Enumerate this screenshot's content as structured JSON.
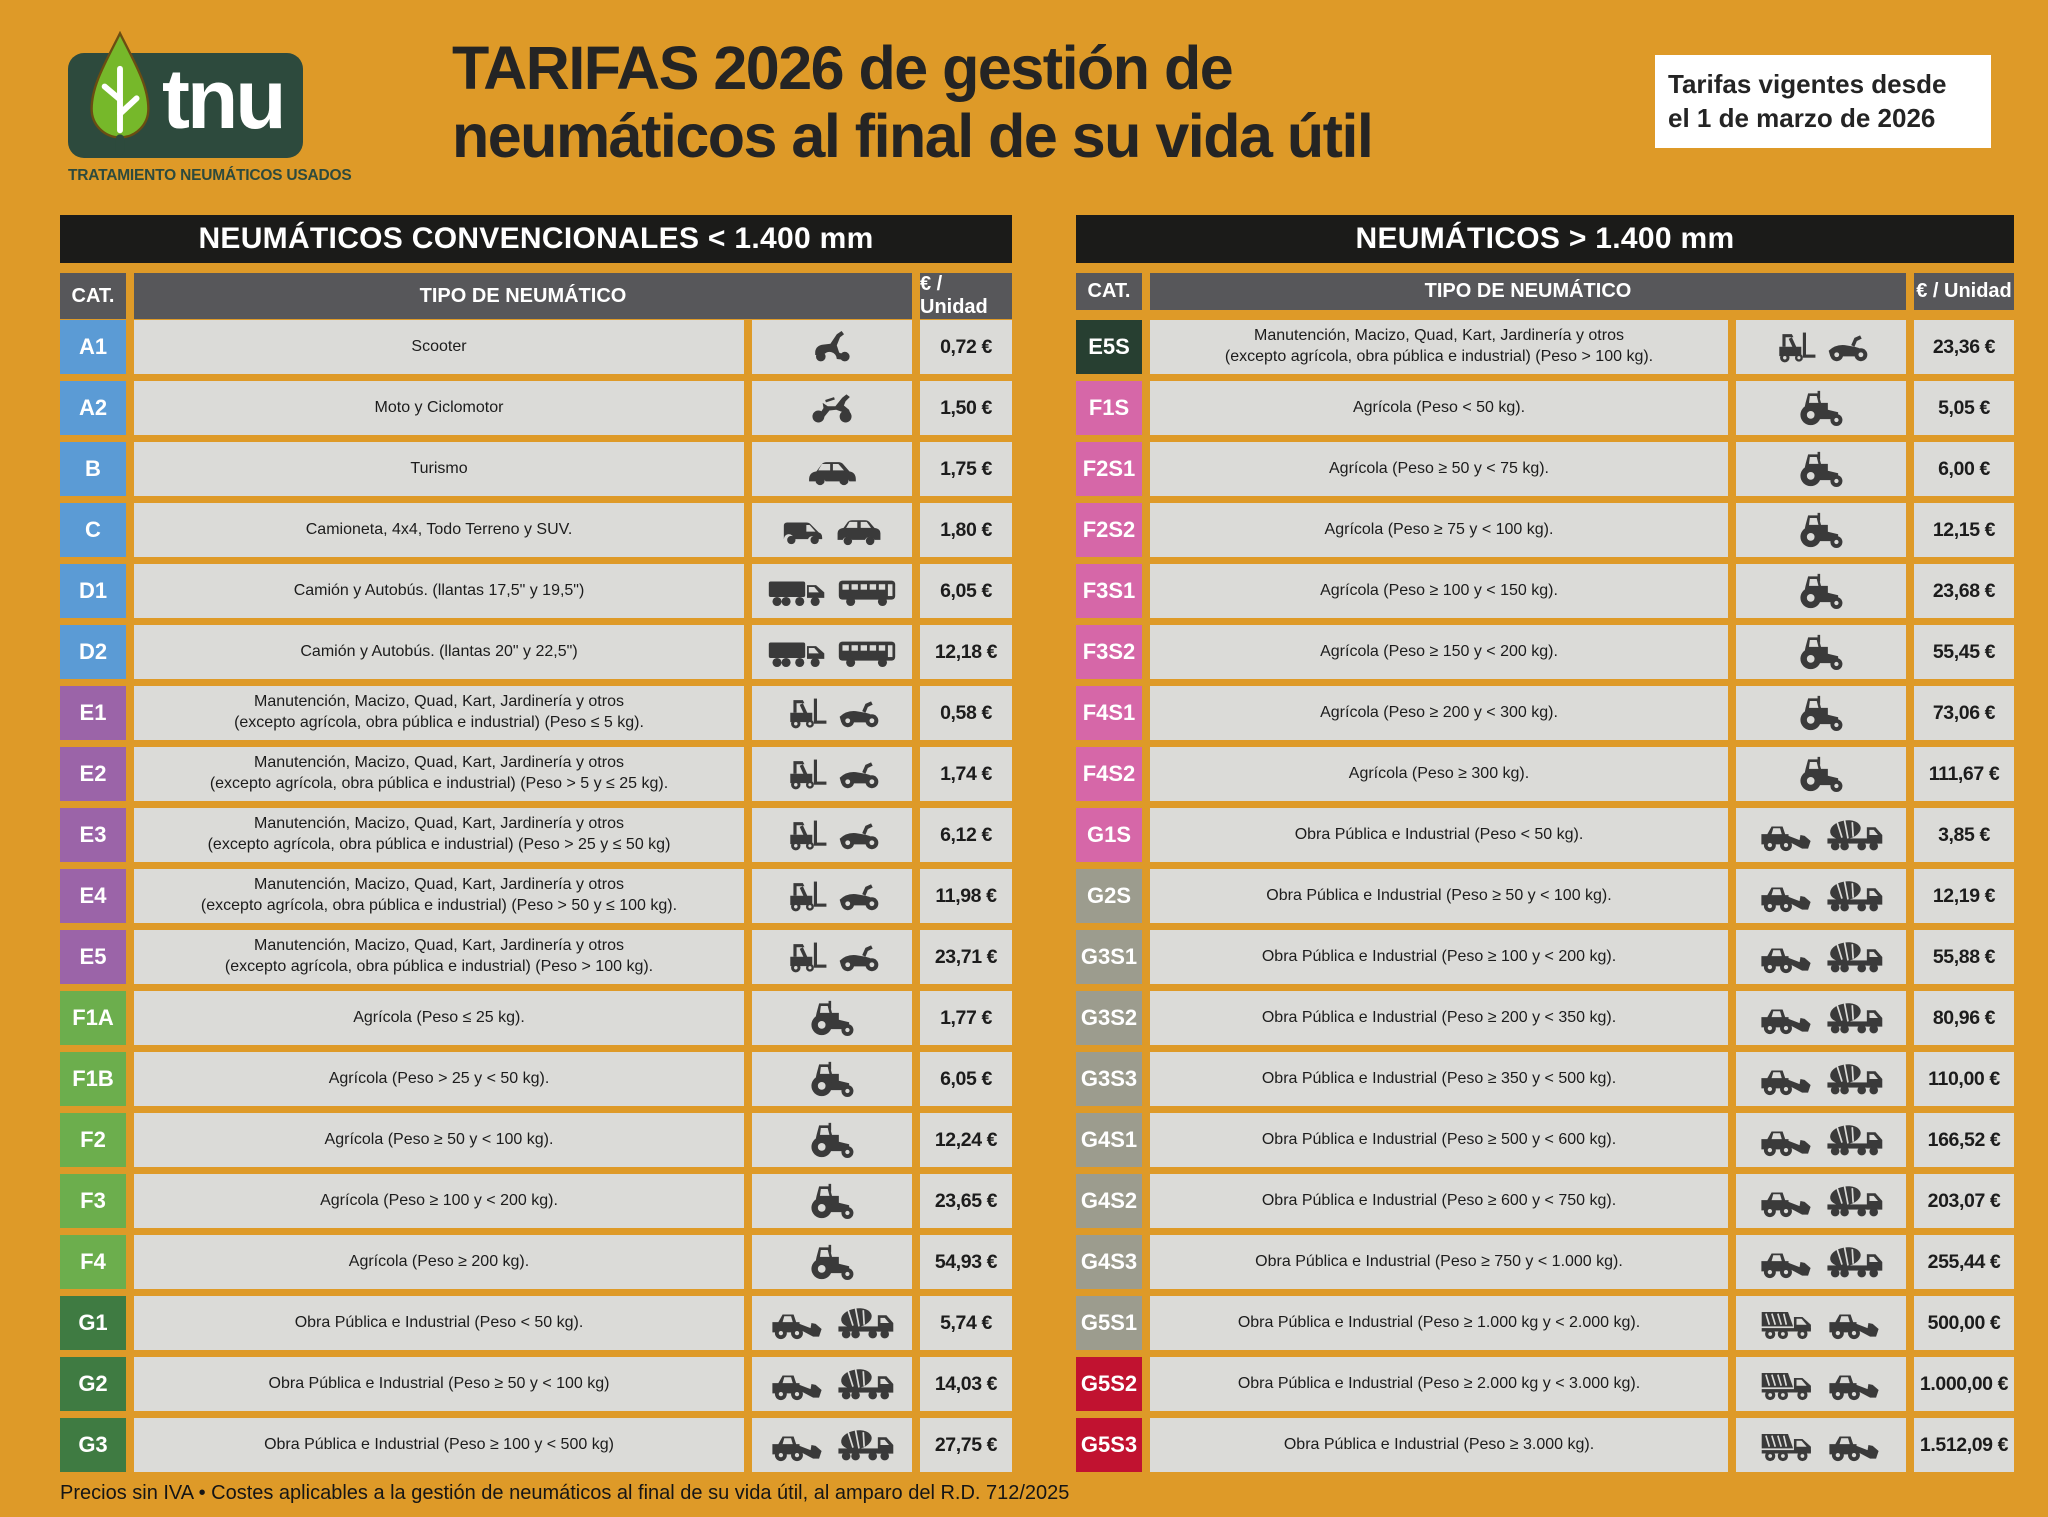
{
  "header": {
    "logo_text": "tnu",
    "logo_subtitle": "TRATAMIENTO NEUMÁTICOS USADOS",
    "title_line1": "TARIFAS 2026 de gestión de",
    "title_line2": "neumáticos al final de su vida útil",
    "validity_line1": "Tarifas vigentes desde",
    "validity_line2": "el 1 de marzo de 2026"
  },
  "columns": {
    "cat": "CAT.",
    "type": "TIPO DE NEUMÁTICO",
    "price": "€ / Unidad"
  },
  "colors": {
    "background": "#DE9A28",
    "table_title_bg": "#1B1B19",
    "column_header_bg": "#57575A",
    "cell_bg": "#DBDBD8",
    "logo_green": "#2D4A3D",
    "leaf_green": "#76B82A",
    "icon_color": "#3A3A3A"
  },
  "badge_colors": {
    "blue": "#5B9BD5",
    "purple": "#9B64A8",
    "green": "#6CAE4D",
    "darkgreen": "#3F7B42",
    "forest": "#273F31",
    "pink": "#D667A8",
    "gray": "#9C9C8E",
    "red": "#C11230"
  },
  "tables": [
    {
      "title": "NEUMÁTICOS CONVENCIONALES < 1.400 mm",
      "rows": [
        {
          "cat": "A1",
          "color": "blue",
          "desc": "Scooter",
          "icons": [
            "scooter"
          ],
          "price": "0,72 €"
        },
        {
          "cat": "A2",
          "color": "blue",
          "desc": "Moto y Ciclomotor",
          "icons": [
            "moto"
          ],
          "price": "1,50 €"
        },
        {
          "cat": "B",
          "color": "blue",
          "desc": "Turismo",
          "icons": [
            "car"
          ],
          "price": "1,75 €"
        },
        {
          "cat": "C",
          "color": "blue",
          "desc": "Camioneta, 4x4, Todo Terreno y SUV.",
          "icons": [
            "van",
            "suv"
          ],
          "price": "1,80 €"
        },
        {
          "cat": "D1",
          "color": "blue",
          "desc": "Camión y Autobús. (llantas 17,5\" y 19,5\")",
          "icons": [
            "truck",
            "bus"
          ],
          "price": "6,05 €"
        },
        {
          "cat": "D2",
          "color": "blue",
          "desc": "Camión y Autobús. (llantas 20\" y 22,5\")",
          "icons": [
            "truck",
            "bus"
          ],
          "price": "12,18 €"
        },
        {
          "cat": "E1",
          "color": "purple",
          "desc": "Manutención, Macizo, Quad, Kart, Jardinería y otros\n(excepto agrícola, obra pública e industrial)  (Peso ≤ 5 kg).",
          "icons": [
            "forklift",
            "quad"
          ],
          "price": "0,58 €"
        },
        {
          "cat": "E2",
          "color": "purple",
          "desc": "Manutención, Macizo, Quad, Kart, Jardinería y otros\n(excepto agrícola, obra pública e industrial) (Peso > 5 y ≤ 25 kg).",
          "icons": [
            "forklift",
            "quad"
          ],
          "price": "1,74 €"
        },
        {
          "cat": "E3",
          "color": "purple",
          "desc": "Manutención, Macizo, Quad, Kart, Jardinería y otros\n(excepto agrícola, obra pública e industrial) (Peso > 25 y ≤ 50 kg)",
          "icons": [
            "forklift",
            "quad"
          ],
          "price": "6,12 €"
        },
        {
          "cat": "E4",
          "color": "purple",
          "desc": "Manutención, Macizo, Quad, Kart, Jardinería y otros\n(excepto agrícola, obra pública e industrial) (Peso > 50 y ≤ 100 kg).",
          "icons": [
            "forklift",
            "quad"
          ],
          "price": "11,98 €"
        },
        {
          "cat": "E5",
          "color": "purple",
          "desc": "Manutención, Macizo, Quad, Kart, Jardinería y otros\n(excepto agrícola, obra pública e industrial) (Peso > 100 kg).",
          "icons": [
            "forklift",
            "quad"
          ],
          "price": "23,71 €"
        },
        {
          "cat": "F1A",
          "color": "green",
          "desc": "Agrícola (Peso ≤ 25 kg).",
          "icons": [
            "tractor"
          ],
          "price": "1,77 €"
        },
        {
          "cat": "F1B",
          "color": "green",
          "desc": "Agrícola (Peso > 25 y < 50 kg).",
          "icons": [
            "tractor"
          ],
          "price": "6,05 €"
        },
        {
          "cat": "F2",
          "color": "green",
          "desc": "Agrícola (Peso ≥ 50 y < 100 kg).",
          "icons": [
            "tractor"
          ],
          "price": "12,24 €"
        },
        {
          "cat": "F3",
          "color": "green",
          "desc": "Agrícola (Peso ≥ 100 y < 200 kg).",
          "icons": [
            "tractor"
          ],
          "price": "23,65 €"
        },
        {
          "cat": "F4",
          "color": "green",
          "desc": "Agrícola (Peso ≥ 200 kg).",
          "icons": [
            "tractor"
          ],
          "price": "54,93 €"
        },
        {
          "cat": "G1",
          "color": "darkgreen",
          "desc": "Obra Pública e Industrial (Peso < 50 kg).",
          "icons": [
            "loader",
            "mixer"
          ],
          "price": "5,74 €"
        },
        {
          "cat": "G2",
          "color": "darkgreen",
          "desc": "Obra Pública e Industrial (Peso ≥ 50 y < 100 kg)",
          "icons": [
            "loader",
            "mixer"
          ],
          "price": "14,03 €"
        },
        {
          "cat": "G3",
          "color": "darkgreen",
          "desc": "Obra Pública e Industrial (Peso ≥ 100 y < 500 kg)",
          "icons": [
            "loader",
            "mixer"
          ],
          "price": "27,75 €"
        }
      ]
    },
    {
      "title": "NEUMÁTICOS > 1.400 mm",
      "rows": [
        {
          "cat": "E5S",
          "color": "forest",
          "desc": "Manutención, Macizo, Quad, Kart, Jardinería y otros\n(excepto agrícola, obra pública e industrial) (Peso > 100 kg).",
          "icons": [
            "forklift",
            "quad"
          ],
          "price": "23,36 €"
        },
        {
          "cat": "F1S",
          "color": "pink",
          "desc": "Agrícola (Peso < 50 kg).",
          "icons": [
            "tractor"
          ],
          "price": "5,05 €"
        },
        {
          "cat": "F2S1",
          "color": "pink",
          "desc": "Agrícola (Peso ≥ 50 y < 75 kg).",
          "icons": [
            "tractor"
          ],
          "price": "6,00 €"
        },
        {
          "cat": "F2S2",
          "color": "pink",
          "desc": "Agrícola (Peso ≥ 75 y < 100 kg).",
          "icons": [
            "tractor"
          ],
          "price": "12,15 €"
        },
        {
          "cat": "F3S1",
          "color": "pink",
          "desc": "Agrícola (Peso ≥ 100 y < 150 kg).",
          "icons": [
            "tractor"
          ],
          "price": "23,68 €"
        },
        {
          "cat": "F3S2",
          "color": "pink",
          "desc": "Agrícola (Peso ≥ 150 y < 200 kg).",
          "icons": [
            "tractor"
          ],
          "price": "55,45 €"
        },
        {
          "cat": "F4S1",
          "color": "pink",
          "desc": "Agrícola (Peso ≥ 200 y < 300 kg).",
          "icons": [
            "tractor"
          ],
          "price": "73,06 €"
        },
        {
          "cat": "F4S2",
          "color": "pink",
          "desc": "Agrícola (Peso ≥ 300 kg).",
          "icons": [
            "tractor"
          ],
          "price": "111,67 €"
        },
        {
          "cat": "G1S",
          "color": "pink",
          "desc": "Obra Pública e Industrial (Peso < 50 kg).",
          "icons": [
            "loader",
            "mixer"
          ],
          "price": "3,85 €"
        },
        {
          "cat": "G2S",
          "color": "gray",
          "desc": "Obra Pública e Industrial (Peso ≥ 50 y < 100 kg).",
          "icons": [
            "loader",
            "mixer"
          ],
          "price": "12,19 €"
        },
        {
          "cat": "G3S1",
          "color": "gray",
          "desc": "Obra Pública e Industrial (Peso ≥ 100 y < 200 kg).",
          "icons": [
            "loader",
            "mixer"
          ],
          "price": "55,88 €"
        },
        {
          "cat": "G3S2",
          "color": "gray",
          "desc": "Obra Pública e Industrial (Peso ≥ 200 y < 350 kg).",
          "icons": [
            "loader",
            "mixer"
          ],
          "price": "80,96 €"
        },
        {
          "cat": "G3S3",
          "color": "gray",
          "desc": "Obra Pública e Industrial (Peso ≥ 350 y < 500 kg).",
          "icons": [
            "loader",
            "mixer"
          ],
          "price": "110,00 €"
        },
        {
          "cat": "G4S1",
          "color": "gray",
          "desc": "Obra Pública e Industrial (Peso ≥ 500 y < 600 kg).",
          "icons": [
            "loader",
            "mixer"
          ],
          "price": "166,52 €"
        },
        {
          "cat": "G4S2",
          "color": "gray",
          "desc": "Obra Pública e Industrial (Peso ≥ 600 y < 750 kg).",
          "icons": [
            "loader",
            "mixer"
          ],
          "price": "203,07 €"
        },
        {
          "cat": "G4S3",
          "color": "gray",
          "desc": "Obra Pública e Industrial (Peso ≥ 750 y < 1.000 kg).",
          "icons": [
            "loader",
            "mixer"
          ],
          "price": "255,44 €"
        },
        {
          "cat": "G5S1",
          "color": "gray",
          "desc": "Obra Pública e Industrial (Peso ≥ 1.000 kg y < 2.000 kg).",
          "icons": [
            "dumper",
            "loader"
          ],
          "price": "500,00 €"
        },
        {
          "cat": "G5S2",
          "color": "red",
          "desc": "Obra Pública e Industrial (Peso ≥ 2.000 kg y < 3.000 kg).",
          "icons": [
            "dumper",
            "loader"
          ],
          "price": "1.000,00 €"
        },
        {
          "cat": "G5S3",
          "color": "red",
          "desc": "Obra Pública e Industrial (Peso ≥ 3.000 kg).",
          "icons": [
            "dumper",
            "loader"
          ],
          "price": "1.512,09 €"
        }
      ]
    }
  ],
  "footer": {
    "text": "Precios sin IVA  • Costes aplicables a la gestión de neumáticos al final de su vida útil, al amparo del R.D. 712/2025"
  }
}
